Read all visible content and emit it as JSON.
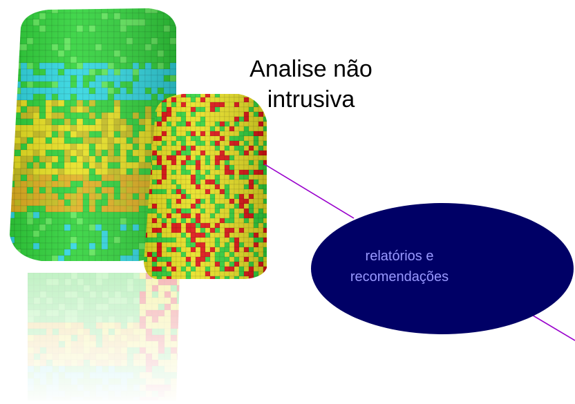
{
  "title": {
    "line1": "Analise não",
    "line2": "intrusiva"
  },
  "bubble": {
    "line1": "relatórios e",
    "line2": "recomendações",
    "fill": "#000066",
    "text_color": "#9999ff"
  },
  "connector_color": "#9900cc",
  "palette": {
    "green": "#2fd23a",
    "light_green": "#5fe85a",
    "cyan": "#2fd6e0",
    "yellow": "#e8e020",
    "olive": "#c8c020",
    "gold": "#e0b020",
    "red": "#dd1111"
  }
}
